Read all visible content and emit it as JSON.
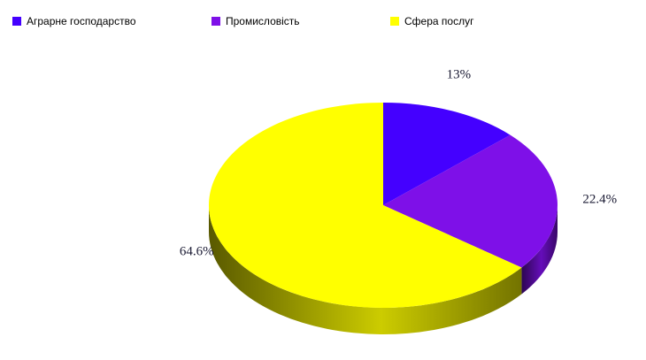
{
  "chart_data": {
    "type": "pie",
    "title": "",
    "legend_position": "top-left",
    "three_d": true,
    "categories": [
      "Аграрне господарство",
      "Промисловість",
      "Сфера послуг"
    ],
    "values": [
      13,
      22.4,
      64.6
    ],
    "labels": [
      "13%",
      "22.4%",
      "64.6%"
    ],
    "colors": [
      "#4400ff",
      "#7e10e8",
      "#ffff00"
    ]
  }
}
